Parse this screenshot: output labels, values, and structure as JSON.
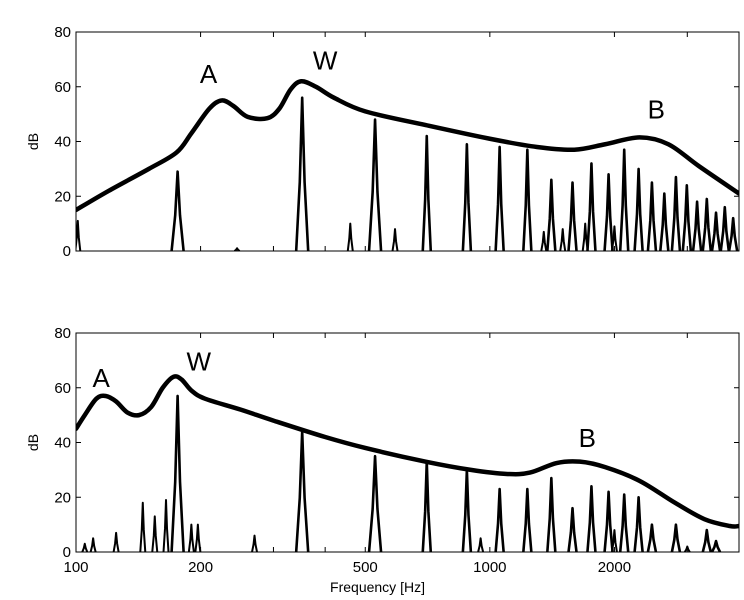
{
  "chart_data": [
    {
      "type": "line",
      "xscale": "log",
      "xlim": [
        100,
        4000
      ],
      "ylim": [
        0,
        80
      ],
      "ylabel": "dB",
      "xlabel": "",
      "yticks": [
        0,
        20,
        40,
        60,
        80
      ],
      "xticks": [],
      "grid": false,
      "envelope": {
        "x": [
          100,
          120,
          150,
          175,
          190,
          210,
          225,
          240,
          260,
          290,
          310,
          330,
          350,
          380,
          420,
          500,
          700,
          1000,
          1300,
          1600,
          1900,
          2300,
          2700,
          3200,
          4000
        ],
        "y": [
          15,
          22,
          30,
          36,
          43,
          52,
          55,
          53,
          49,
          48.5,
          52,
          59,
          62,
          60,
          56,
          51,
          46,
          41,
          38,
          37,
          39,
          41.5,
          39,
          31,
          21
        ]
      },
      "harmonics": {
        "x": [
          176,
          352,
          528,
          704,
          880,
          1056,
          1232,
          1408,
          1584,
          1760,
          1936,
          2112,
          2288,
          2464,
          2640,
          2816,
          2992,
          3168,
          3344,
          3520,
          3696,
          3872
        ],
        "y": [
          29,
          56,
          48,
          42,
          39,
          38,
          37,
          26,
          25,
          32,
          28,
          37,
          30,
          25,
          21,
          27,
          24,
          18,
          19,
          14,
          16,
          12
        ]
      },
      "minor_peaks": {
        "x": [
          101,
          245,
          460,
          590,
          1350,
          1500,
          1700,
          2000
        ],
        "y": [
          11,
          1,
          10,
          8,
          7,
          8,
          10,
          9
        ]
      },
      "annotations": [
        {
          "text": "A",
          "x": 209,
          "y": 65
        },
        {
          "text": "W",
          "x": 400,
          "y": 70
        },
        {
          "text": "B",
          "x": 2525,
          "y": 52
        }
      ]
    },
    {
      "type": "line",
      "xscale": "log",
      "xlim": [
        100,
        4000
      ],
      "ylim": [
        0,
        80
      ],
      "ylabel": "dB",
      "xlabel": "Frequency [Hz]",
      "yticks": [
        0,
        20,
        40,
        60,
        80
      ],
      "xticks": [
        100,
        200,
        500,
        1000,
        2000
      ],
      "grid": false,
      "envelope": {
        "x": [
          100,
          105,
          112,
          118,
          125,
          133,
          142,
          152,
          162,
          172,
          180,
          190,
          205,
          250,
          300,
          400,
          500,
          700,
          900,
          1100,
          1250,
          1450,
          1650,
          1900,
          2300,
          2800,
          3300,
          3800,
          4000
        ],
        "y": [
          45,
          50,
          56,
          57,
          55,
          51,
          50,
          53,
          60,
          64,
          63,
          59,
          56,
          52,
          48,
          42,
          38,
          33,
          30,
          28.5,
          29,
          32.5,
          33,
          31,
          26,
          18,
          12,
          9.5,
          9.5
        ]
      },
      "harmonics": {
        "x": [
          176,
          352,
          528,
          704,
          880,
          1056,
          1232,
          1408,
          1584,
          1760,
          1936,
          2112,
          2288,
          2464,
          2816,
          3344,
          3520
        ],
        "y": [
          57,
          44,
          35,
          33,
          30,
          23,
          23,
          27,
          16,
          24,
          22,
          21,
          20,
          10,
          10,
          8,
          4
        ]
      },
      "minor_peaks": {
        "x": [
          105,
          110,
          125,
          145,
          155,
          165,
          190,
          197,
          270,
          950,
          2000,
          3000
        ],
        "y": [
          3,
          5,
          7,
          18,
          13,
          19,
          10,
          10,
          6,
          5,
          8,
          2
        ]
      },
      "annotations": [
        {
          "text": "A",
          "x": 115,
          "y": 64
        },
        {
          "text": "W",
          "x": 198,
          "y": 70
        },
        {
          "text": "B",
          "x": 1720,
          "y": 42
        }
      ]
    }
  ]
}
